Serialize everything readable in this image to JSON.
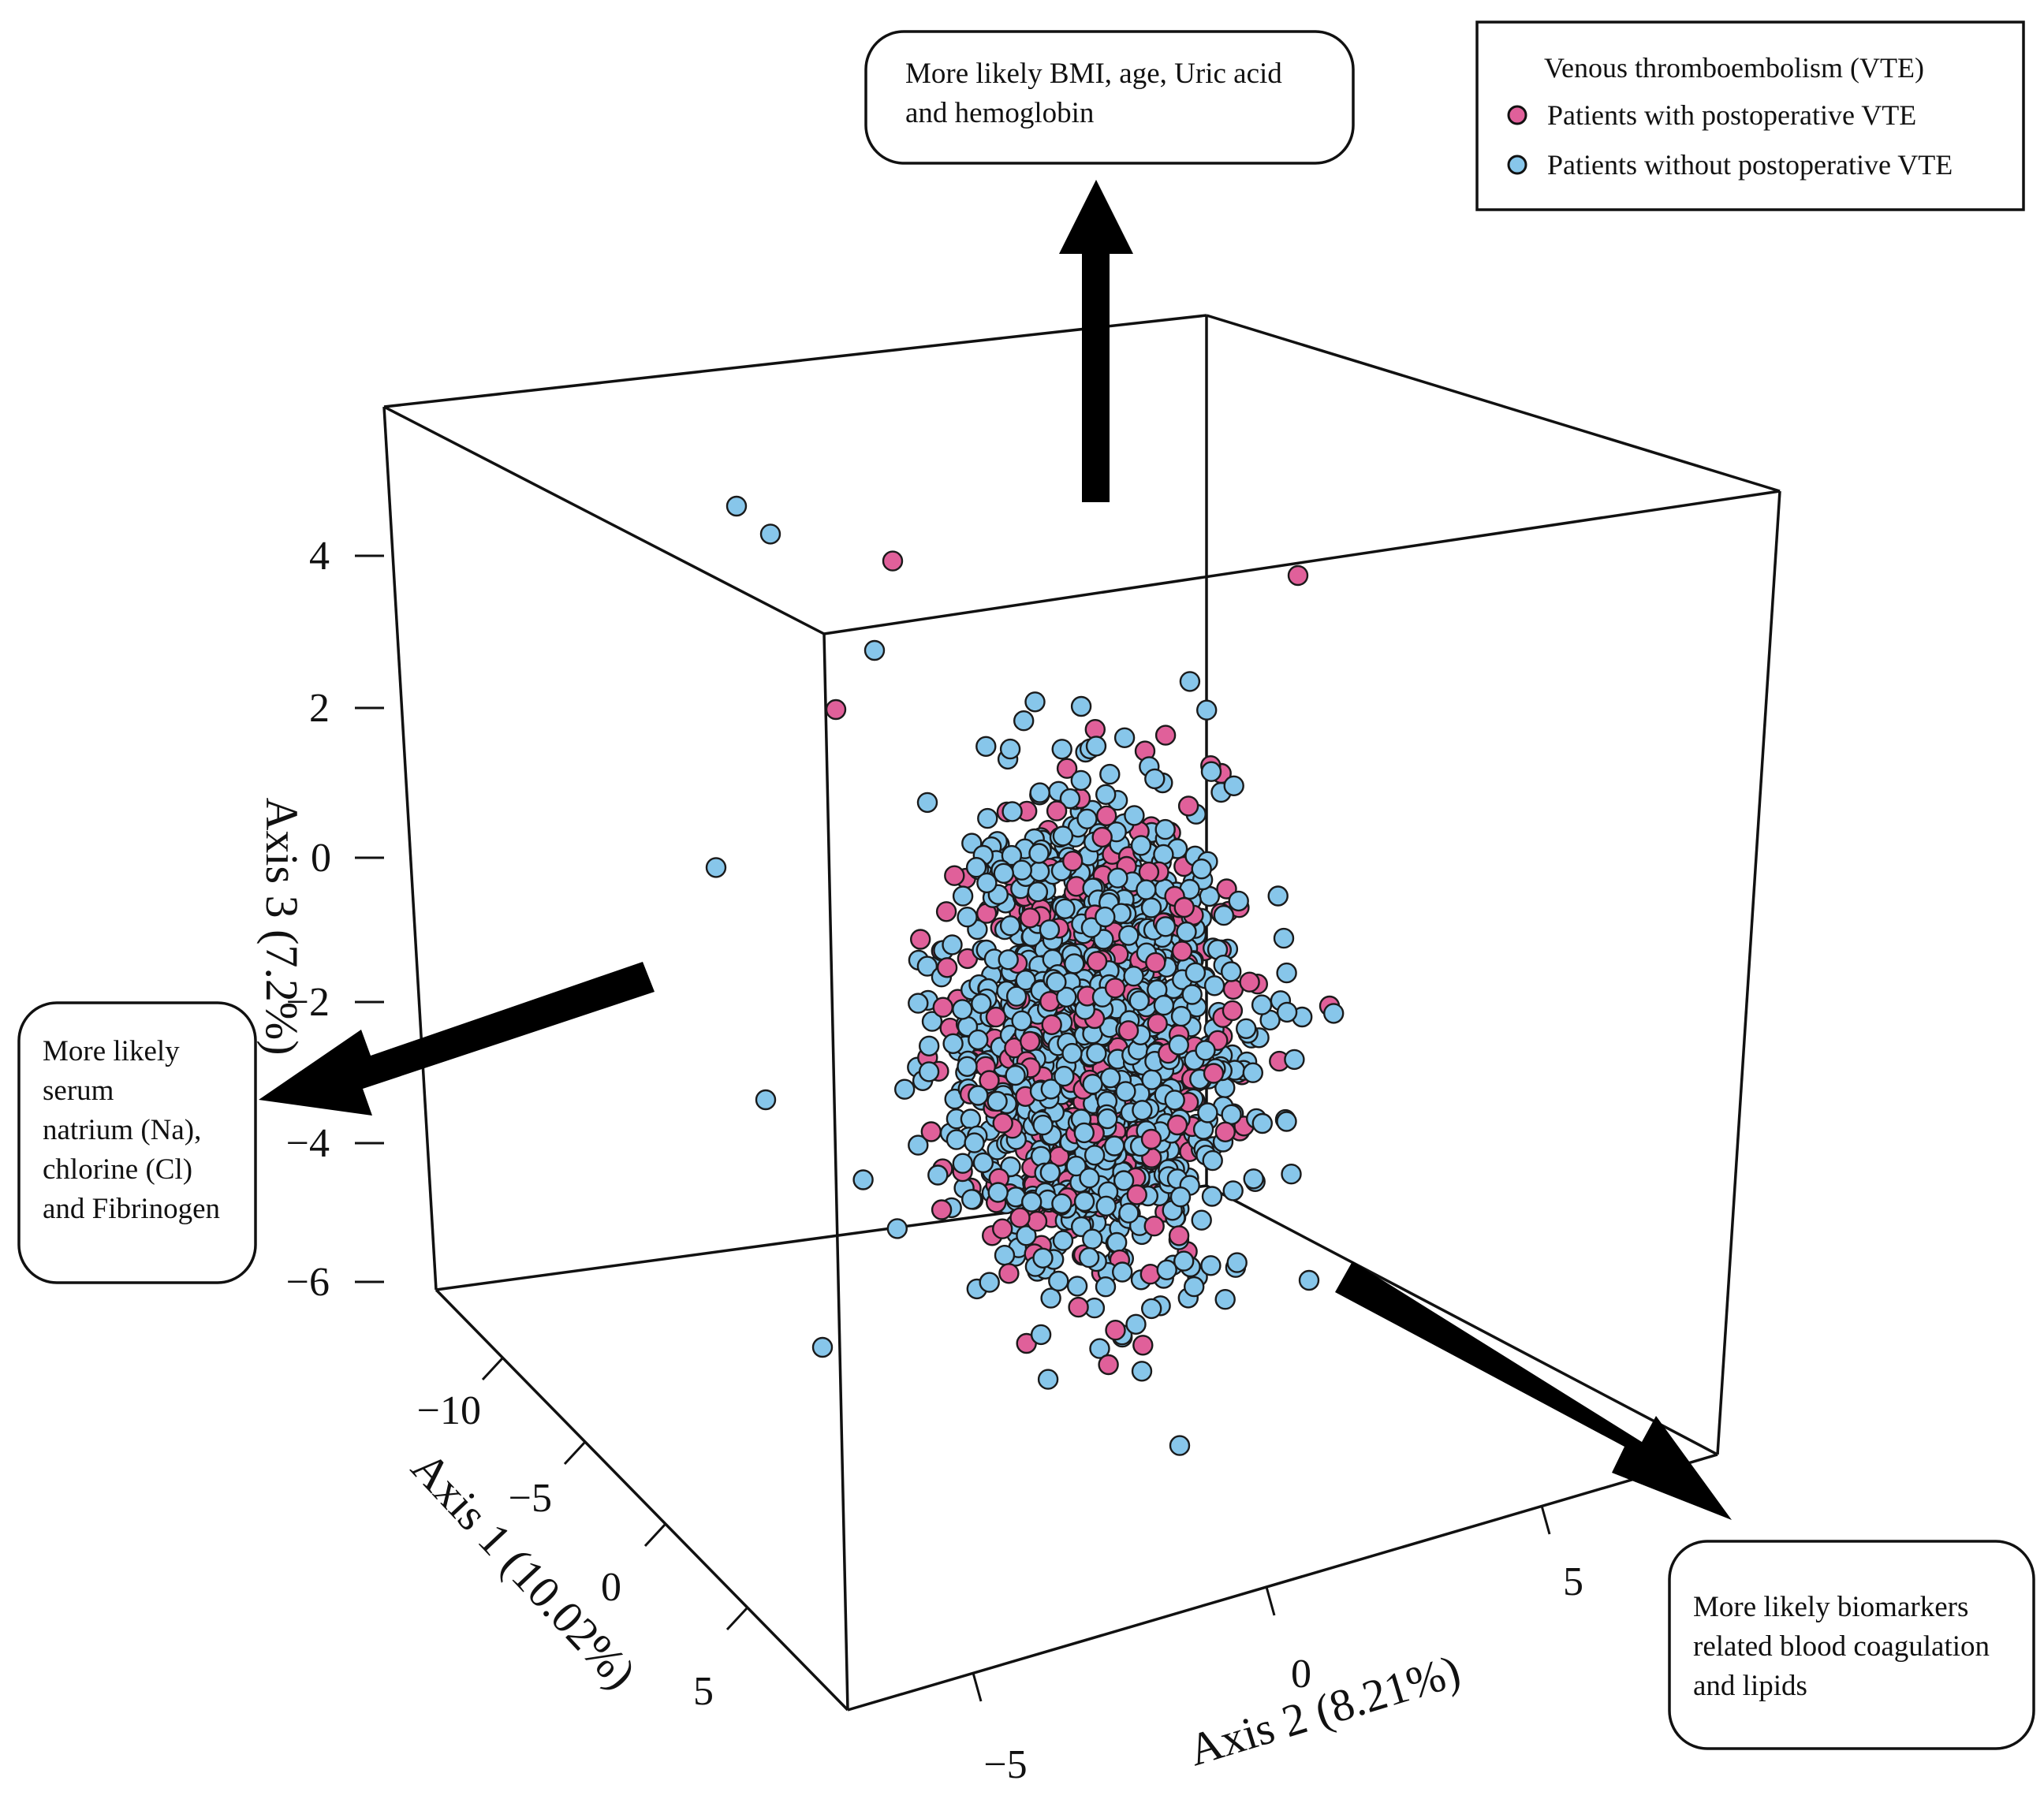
{
  "chart_data": {
    "type": "scatter3d",
    "title": "",
    "series": [
      {
        "name": "Patients with postoperative VTE",
        "color": "#e0609a"
      },
      {
        "name": "Patients without postoperative VTE",
        "color": "#87c6ea"
      }
    ],
    "legend": {
      "title": "Venous thromboembolism (VTE)",
      "entries": [
        "Patients with postoperative VTE",
        "Patients without postoperative VTE"
      ],
      "placement": "top-right"
    },
    "axes": {
      "axis1": {
        "label": "Axis 1 (10.02%)",
        "ticks": [
          "−10",
          "−5",
          "0",
          "5"
        ],
        "range": [
          -12,
          8
        ]
      },
      "axis2": {
        "label": "Axis 2 (8.21%)",
        "ticks": [
          "−5",
          "0",
          "5"
        ],
        "range": [
          -8,
          8
        ]
      },
      "axis3": {
        "label": "Axis 3 (7.2%)",
        "ticks": [
          "4",
          "2",
          "0",
          "−2",
          "−4",
          "−6"
        ],
        "range": [
          -6,
          5.5
        ]
      }
    },
    "annotations": {
      "top": "More likely BMI, age, Uric acid and hemoglobin",
      "left": "More likely serum natrium (Na), chlorine (Cl) and Fibrinogen",
      "right": "More likely biomarkers related blood coagulation and lipids"
    },
    "cluster": {
      "center_axis1": 0.0,
      "center_axis2": 0.0,
      "center_axis3": -1.2,
      "approx_range_axis1": [
        -4,
        4
      ],
      "approx_range_axis2": [
        -4,
        4
      ],
      "approx_range_axis3": [
        -5.5,
        4.5
      ],
      "approx_points_shown": 1800,
      "vte_fraction": 0.27
    },
    "outliers": [
      {
        "group": "without",
        "axis1": -9,
        "axis2": -6,
        "axis3": 4.5
      },
      {
        "group": "without",
        "axis1": -8,
        "axis2": -5.5,
        "axis3": 4.3
      },
      {
        "group": "with",
        "axis1": -6,
        "axis2": -3,
        "axis3": 4.2
      },
      {
        "group": "without",
        "axis1": -6,
        "axis2": -3.5,
        "axis3": 3.0
      },
      {
        "group": "with",
        "axis1": -5,
        "axis2": -5,
        "axis3": 2.5
      },
      {
        "group": "without",
        "axis1": -8,
        "axis2": -7,
        "axis3": -0.2
      },
      {
        "group": "without",
        "axis1": -6,
        "axis2": -6.5,
        "axis3": -3.0
      },
      {
        "group": "with",
        "axis1": 1,
        "axis2": 6,
        "axis3": -1.0
      },
      {
        "group": "with",
        "axis1": -1,
        "axis2": 6,
        "axis3": 4.5
      },
      {
        "group": "without",
        "axis1": 3,
        "axis2": 1,
        "axis3": -6.3
      },
      {
        "group": "without",
        "axis1": 2,
        "axis2": 5,
        "axis3": -4.5
      }
    ]
  }
}
